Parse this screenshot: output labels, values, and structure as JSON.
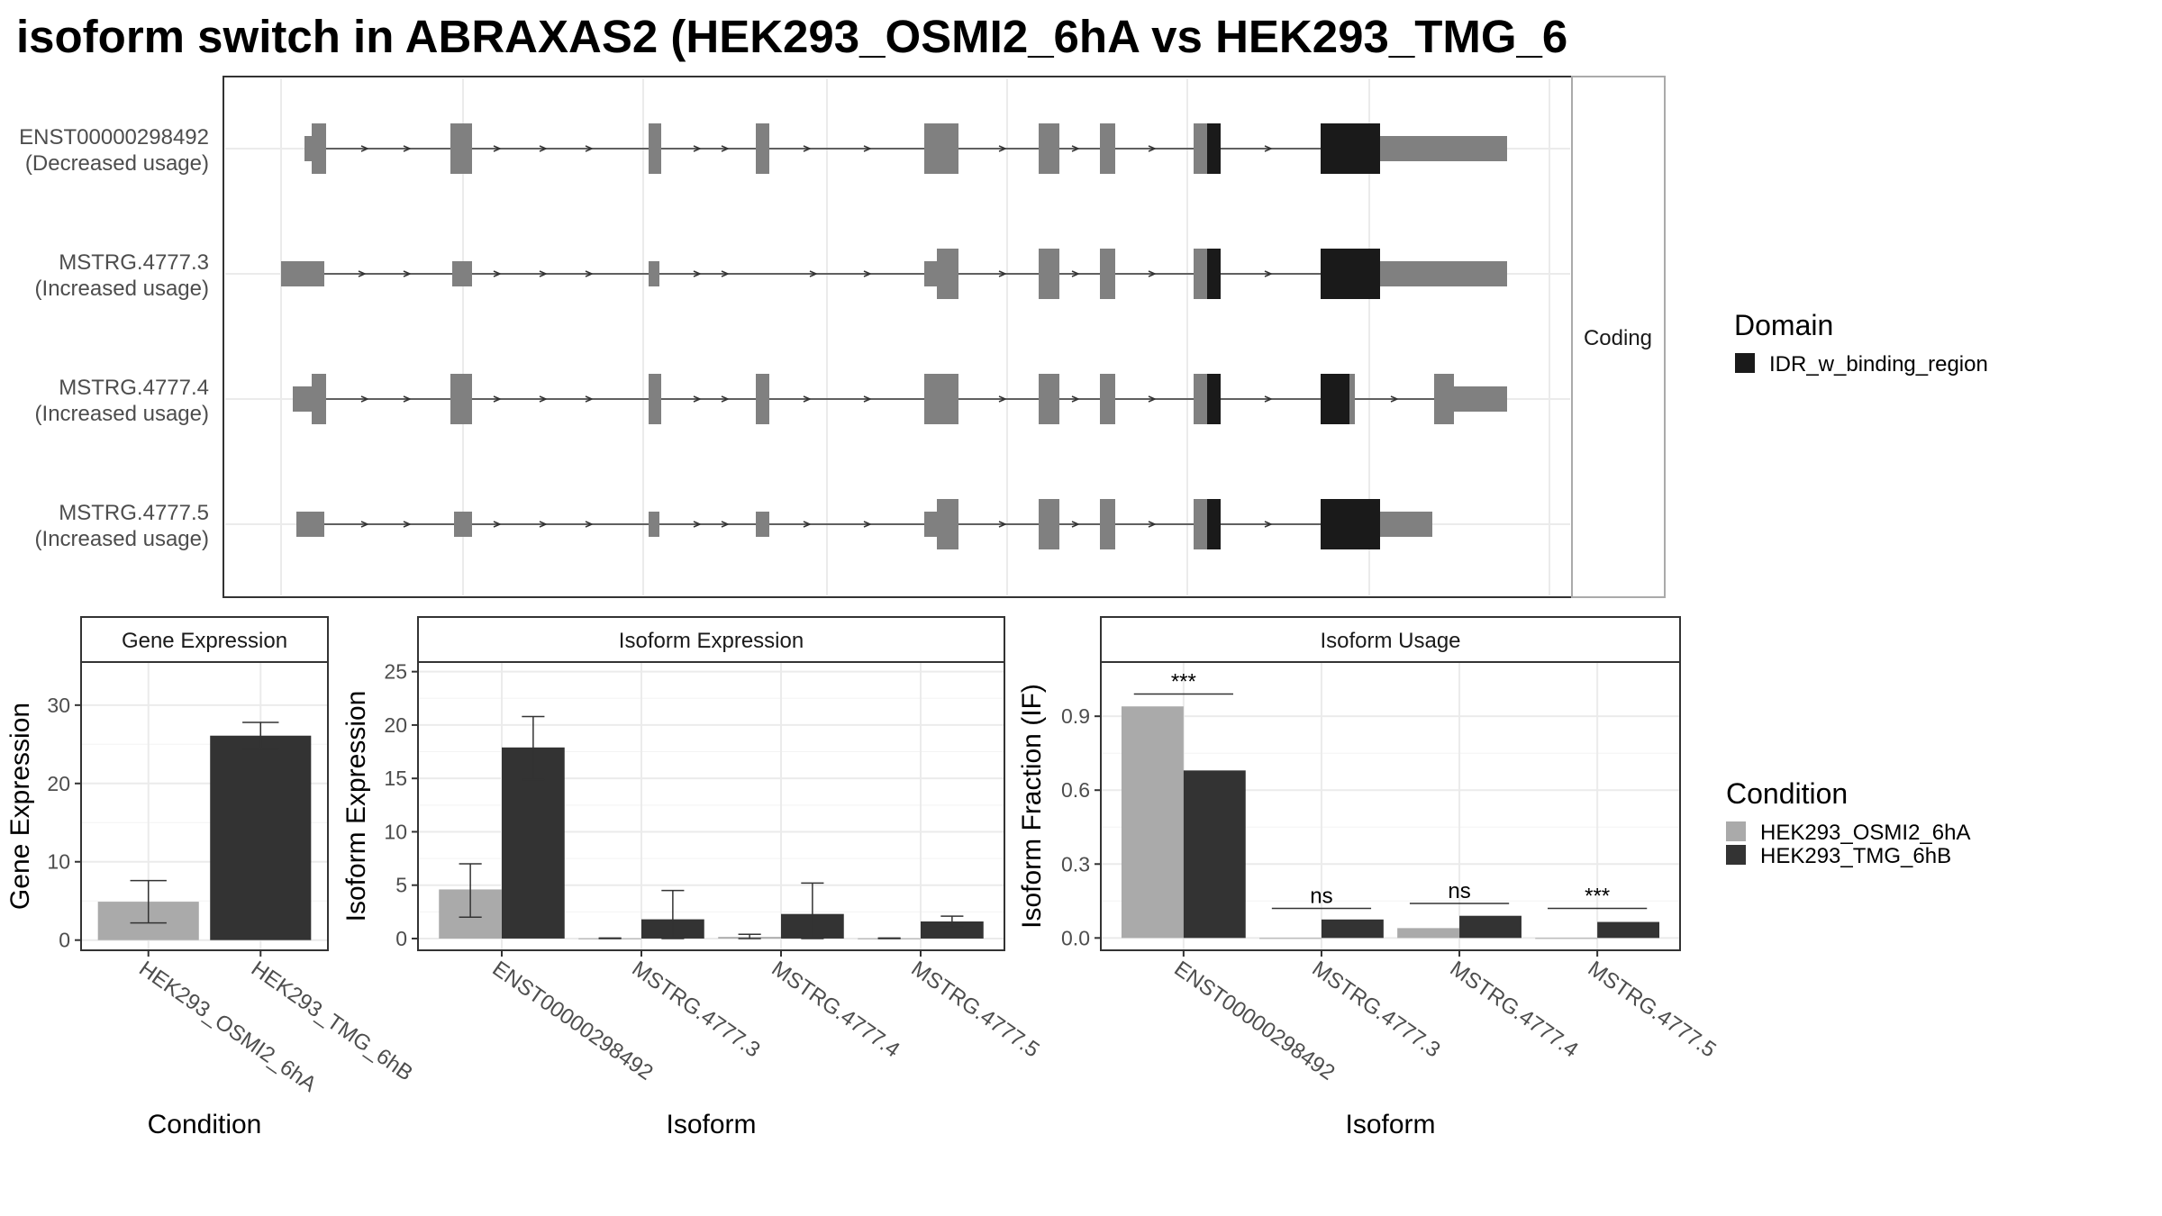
{
  "title": "isoform switch in ABRAXAS2 (HEK293_OSMI2_6hA vs HEK293_TMG_6",
  "colors": {
    "exon": "#808080",
    "domain": "#1a1a1a",
    "cond1": "#aaaaaa",
    "cond2": "#333333",
    "panel_border": "#333333",
    "strip_border": "#aaaaaa",
    "grid": "#ebebeb"
  },
  "chart_data": [
    {
      "type": "transcript-structure",
      "strip_label": "Coding",
      "legend": {
        "title": "Domain",
        "entries": [
          "IDR_w_binding_region"
        ]
      },
      "isoforms": [
        {
          "id": "ENST00000298492",
          "usage": "(Decreased usage)"
        },
        {
          "id": "MSTRG.4777.3",
          "usage": "(Increased usage)"
        },
        {
          "id": "MSTRG.4777.4",
          "usage": "(Increased usage)"
        },
        {
          "id": "MSTRG.4777.5",
          "usage": "(Increased usage)"
        }
      ]
    },
    {
      "type": "bar",
      "title": "Gene Expression",
      "xlabel": "Condition",
      "ylabel": "Gene Expression",
      "ylim": [
        -1.3,
        35.5
      ],
      "yticks": [
        0,
        10,
        20,
        30
      ],
      "categories": [
        "HEK293_OSMI2_6hA",
        "HEK293_TMG_6hB"
      ],
      "values": [
        4.9,
        26.1
      ],
      "errors": [
        [
          2.2,
          7.6
        ],
        [
          24.4,
          27.8
        ]
      ]
    },
    {
      "type": "bar",
      "title": "Isoform Expression",
      "xlabel": "Isoform",
      "ylabel": "Isoform Expression",
      "ylim": [
        -1.1,
        25.9
      ],
      "yticks": [
        0,
        5,
        10,
        15,
        20,
        25
      ],
      "categories": [
        "ENST00000298492",
        "MSTRG.4777.3",
        "MSTRG.4777.4",
        "MSTRG.4777.5"
      ],
      "series": [
        {
          "name": "HEK293_OSMI2_6hA",
          "values": [
            4.6,
            0.02,
            0.15,
            0.02
          ],
          "errors": [
            [
              2.0,
              7.0
            ],
            [
              0,
              0.05
            ],
            [
              0,
              0.4
            ],
            [
              0,
              0.05
            ]
          ]
        },
        {
          "name": "HEK293_TMG_6hB",
          "values": [
            17.9,
            1.8,
            2.3,
            1.6
          ],
          "errors": [
            [
              14.9,
              20.8
            ],
            [
              0,
              4.5
            ],
            [
              0,
              5.2
            ],
            [
              1.1,
              2.1
            ]
          ]
        }
      ]
    },
    {
      "type": "bar",
      "title": "Isoform Usage",
      "xlabel": "Isoform",
      "ylabel": "Isoform Fraction (IF)",
      "ylim": [
        -0.05,
        1.12
      ],
      "yticks": [
        0.0,
        0.3,
        0.6,
        0.9
      ],
      "ytick_labels": [
        "0.0",
        "0.3",
        "0.6",
        "0.9"
      ],
      "categories": [
        "ENST00000298492",
        "MSTRG.4777.3",
        "MSTRG.4777.4",
        "MSTRG.4777.5"
      ],
      "series": [
        {
          "name": "HEK293_OSMI2_6hA",
          "values": [
            0.94,
            0.0,
            0.04,
            0.0
          ]
        },
        {
          "name": "HEK293_TMG_6hB",
          "values": [
            0.68,
            0.075,
            0.09,
            0.065
          ]
        }
      ],
      "significance": [
        "***",
        "ns",
        "ns",
        "***"
      ],
      "sig_line_y": [
        0.99,
        0.12,
        0.14,
        0.12
      ]
    }
  ],
  "condition_legend": {
    "title": "Condition",
    "entries": [
      "HEK293_OSMI2_6hA",
      "HEK293_TMG_6hB"
    ]
  }
}
